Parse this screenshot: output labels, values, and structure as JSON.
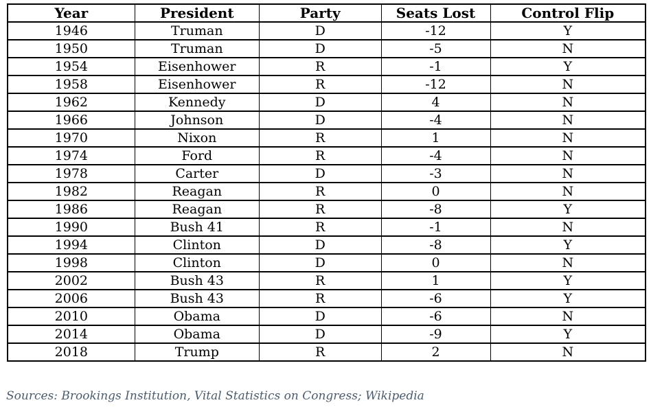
{
  "table": {
    "columns": [
      "Year",
      "President",
      "Party",
      "Seats Lost",
      "Control Flip"
    ],
    "rows": [
      [
        "1946",
        "Truman",
        "D",
        "-12",
        "Y"
      ],
      [
        "1950",
        "Truman",
        "D",
        "-5",
        "N"
      ],
      [
        "1954",
        "Eisenhower",
        "R",
        "-1",
        "Y"
      ],
      [
        "1958",
        "Eisenhower",
        "R",
        "-12",
        "N"
      ],
      [
        "1962",
        "Kennedy",
        "D",
        "4",
        "N"
      ],
      [
        "1966",
        "Johnson",
        "D",
        "-4",
        "N"
      ],
      [
        "1970",
        "Nixon",
        "R",
        "1",
        "N"
      ],
      [
        "1974",
        "Ford",
        "R",
        "-4",
        "N"
      ],
      [
        "1978",
        "Carter",
        "D",
        "-3",
        "N"
      ],
      [
        "1982",
        "Reagan",
        "R",
        "0",
        "N"
      ],
      [
        "1986",
        "Reagan",
        "R",
        "-8",
        "Y"
      ],
      [
        "1990",
        "Bush 41",
        "R",
        "-1",
        "N"
      ],
      [
        "1994",
        "Clinton",
        "D",
        "-8",
        "Y"
      ],
      [
        "1998",
        "Clinton",
        "D",
        "0",
        "N"
      ],
      [
        "2002",
        "Bush 43",
        "R",
        "1",
        "Y"
      ],
      [
        "2006",
        "Bush 43",
        "R",
        "-6",
        "Y"
      ],
      [
        "2010",
        "Obama",
        "D",
        "-6",
        "N"
      ],
      [
        "2014",
        "Obama",
        "D",
        "-9",
        "Y"
      ],
      [
        "2018",
        "Trump",
        "R",
        "2",
        "N"
      ]
    ]
  },
  "footer": {
    "sources": "Sources: Brookings Institution, Vital Statistics on Congress; Wikipedia"
  },
  "colors": {
    "border": "#000000",
    "text": "#000000",
    "footer_text": "#4a5c6e",
    "background": "#ffffff"
  },
  "chart_data": {
    "type": "table",
    "title": "",
    "columns": [
      "Year",
      "President",
      "Party",
      "Seats Lost",
      "Control Flip"
    ],
    "rows": [
      {
        "year": 1946,
        "president": "Truman",
        "party": "D",
        "seats_lost": -12,
        "control_flip": "Y"
      },
      {
        "year": 1950,
        "president": "Truman",
        "party": "D",
        "seats_lost": -5,
        "control_flip": "N"
      },
      {
        "year": 1954,
        "president": "Eisenhower",
        "party": "R",
        "seats_lost": -1,
        "control_flip": "Y"
      },
      {
        "year": 1958,
        "president": "Eisenhower",
        "party": "R",
        "seats_lost": -12,
        "control_flip": "N"
      },
      {
        "year": 1962,
        "president": "Kennedy",
        "party": "D",
        "seats_lost": 4,
        "control_flip": "N"
      },
      {
        "year": 1966,
        "president": "Johnson",
        "party": "D",
        "seats_lost": -4,
        "control_flip": "N"
      },
      {
        "year": 1970,
        "president": "Nixon",
        "party": "R",
        "seats_lost": 1,
        "control_flip": "N"
      },
      {
        "year": 1974,
        "president": "Ford",
        "party": "R",
        "seats_lost": -4,
        "control_flip": "N"
      },
      {
        "year": 1978,
        "president": "Carter",
        "party": "D",
        "seats_lost": -3,
        "control_flip": "N"
      },
      {
        "year": 1982,
        "president": "Reagan",
        "party": "R",
        "seats_lost": 0,
        "control_flip": "N"
      },
      {
        "year": 1986,
        "president": "Reagan",
        "party": "R",
        "seats_lost": -8,
        "control_flip": "Y"
      },
      {
        "year": 1990,
        "president": "Bush 41",
        "party": "R",
        "seats_lost": -1,
        "control_flip": "N"
      },
      {
        "year": 1994,
        "president": "Clinton",
        "party": "D",
        "seats_lost": -8,
        "control_flip": "Y"
      },
      {
        "year": 1998,
        "president": "Clinton",
        "party": "D",
        "seats_lost": 0,
        "control_flip": "N"
      },
      {
        "year": 2002,
        "president": "Bush 43",
        "party": "R",
        "seats_lost": 1,
        "control_flip": "Y"
      },
      {
        "year": 2006,
        "president": "Bush 43",
        "party": "R",
        "seats_lost": -6,
        "control_flip": "Y"
      },
      {
        "year": 2010,
        "president": "Obama",
        "party": "D",
        "seats_lost": -6,
        "control_flip": "N"
      },
      {
        "year": 2014,
        "president": "Obama",
        "party": "D",
        "seats_lost": -9,
        "control_flip": "Y"
      },
      {
        "year": 2018,
        "president": "Trump",
        "party": "R",
        "seats_lost": 2,
        "control_flip": "N"
      }
    ],
    "annotations": [
      "Sources: Brookings Institution, Vital Statistics on Congress; Wikipedia"
    ]
  }
}
